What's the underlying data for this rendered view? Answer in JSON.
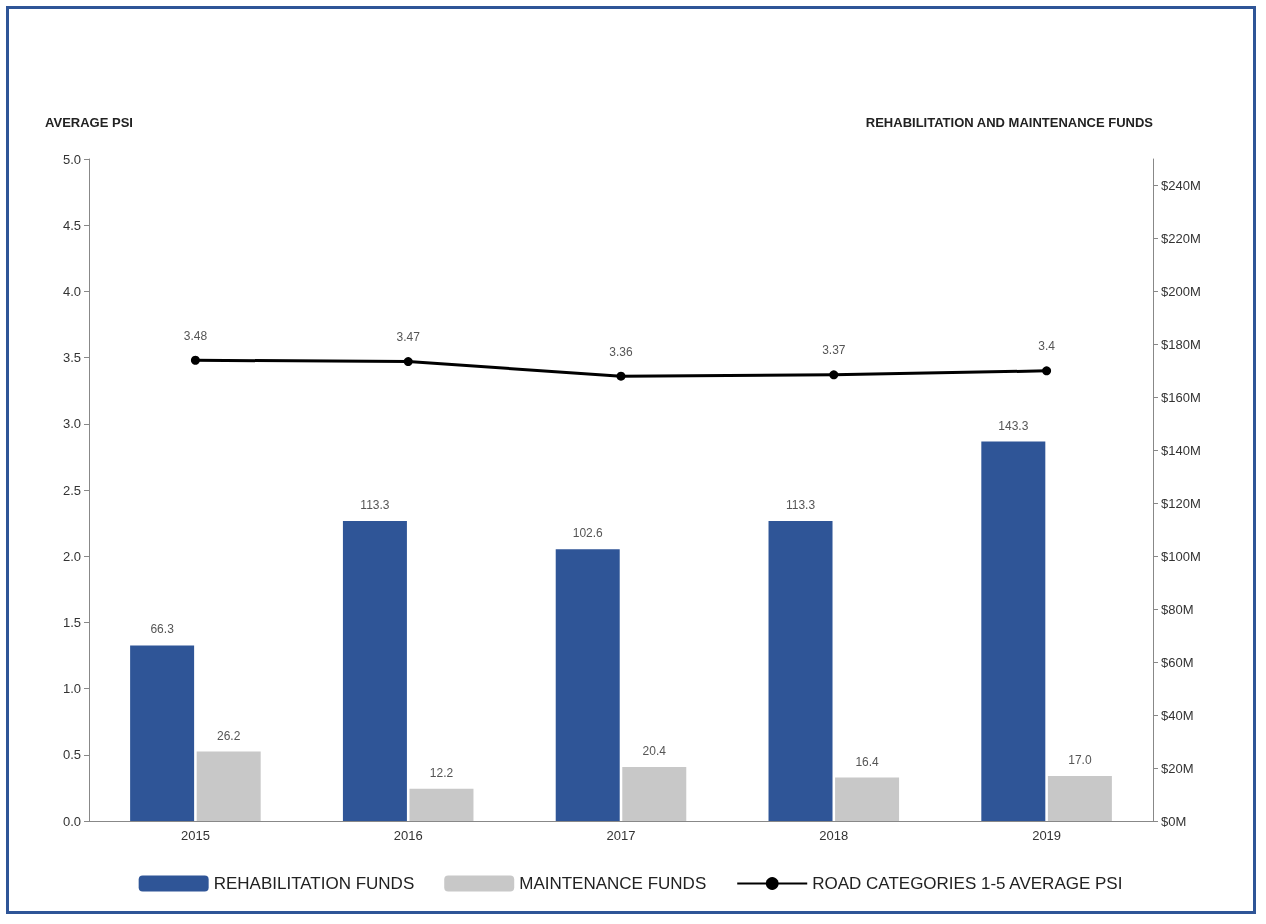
{
  "chart_data": {
    "type": "bar",
    "ylabel": "AVERAGE PSI",
    "y2label": "REHABILITATION AND MAINTENANCE FUNDS",
    "categories": [
      "2015",
      "2016",
      "2017",
      "2018",
      "2019"
    ],
    "series": [
      {
        "name": "REHABILITATION FUNDS",
        "axis": "y2",
        "color": "#2f5597",
        "values": [
          66.3,
          113.3,
          102.6,
          113.3,
          143.3
        ],
        "value_labels": [
          "66.3",
          "113.3",
          "102.6",
          "113.3",
          "143.3"
        ]
      },
      {
        "name": "MAINTENANCE FUNDS",
        "axis": "y2",
        "color": "#c8c8c8",
        "values": [
          26.2,
          12.2,
          20.4,
          16.4,
          17.0
        ],
        "value_labels": [
          "26.2",
          "12.2",
          "20.4",
          "16.4",
          "17.0"
        ]
      },
      {
        "name": "ROAD CATEGORIES 1-5 AVERAGE PSI",
        "type": "line",
        "axis": "y",
        "color": "#000000",
        "marker": "circle",
        "line_style": "solid",
        "values": [
          3.48,
          3.47,
          3.36,
          3.37,
          3.4
        ],
        "value_labels": [
          "3.48",
          "3.47",
          "3.36",
          "3.37",
          "3.4"
        ]
      }
    ],
    "ylim": [
      0,
      5
    ],
    "yticks": [
      {
        "value": 0,
        "label": "0.0"
      },
      {
        "value": 0.5,
        "label": "0.5"
      },
      {
        "value": 1,
        "label": "1.0"
      },
      {
        "value": 1.5,
        "label": "1.5"
      },
      {
        "value": 2,
        "label": "2.0"
      },
      {
        "value": 2.5,
        "label": "2.5"
      },
      {
        "value": 3,
        "label": "3.0"
      },
      {
        "value": 3.5,
        "label": "3.5"
      },
      {
        "value": 4,
        "label": "4.0"
      },
      {
        "value": 4.5,
        "label": "4.5"
      },
      {
        "value": 5,
        "label": "5.0"
      }
    ],
    "y2lim": [
      0,
      250
    ],
    "y2ticks": [
      {
        "value": 0,
        "label": "$0M"
      },
      {
        "value": 20,
        "label": "$20M"
      },
      {
        "value": 40,
        "label": "$40M"
      },
      {
        "value": 60,
        "label": "$60M"
      },
      {
        "value": 80,
        "label": "$80M"
      },
      {
        "value": 100,
        "label": "$100M"
      },
      {
        "value": 120,
        "label": "$120M"
      },
      {
        "value": 140,
        "label": "$140M"
      },
      {
        "value": 160,
        "label": "$160M"
      },
      {
        "value": 180,
        "label": "$180M"
      },
      {
        "value": 200,
        "label": "$200M"
      },
      {
        "value": 220,
        "label": "$220M"
      },
      {
        "value": 240,
        "label": "$240M"
      }
    ],
    "grid": false,
    "legend": "bottom"
  }
}
